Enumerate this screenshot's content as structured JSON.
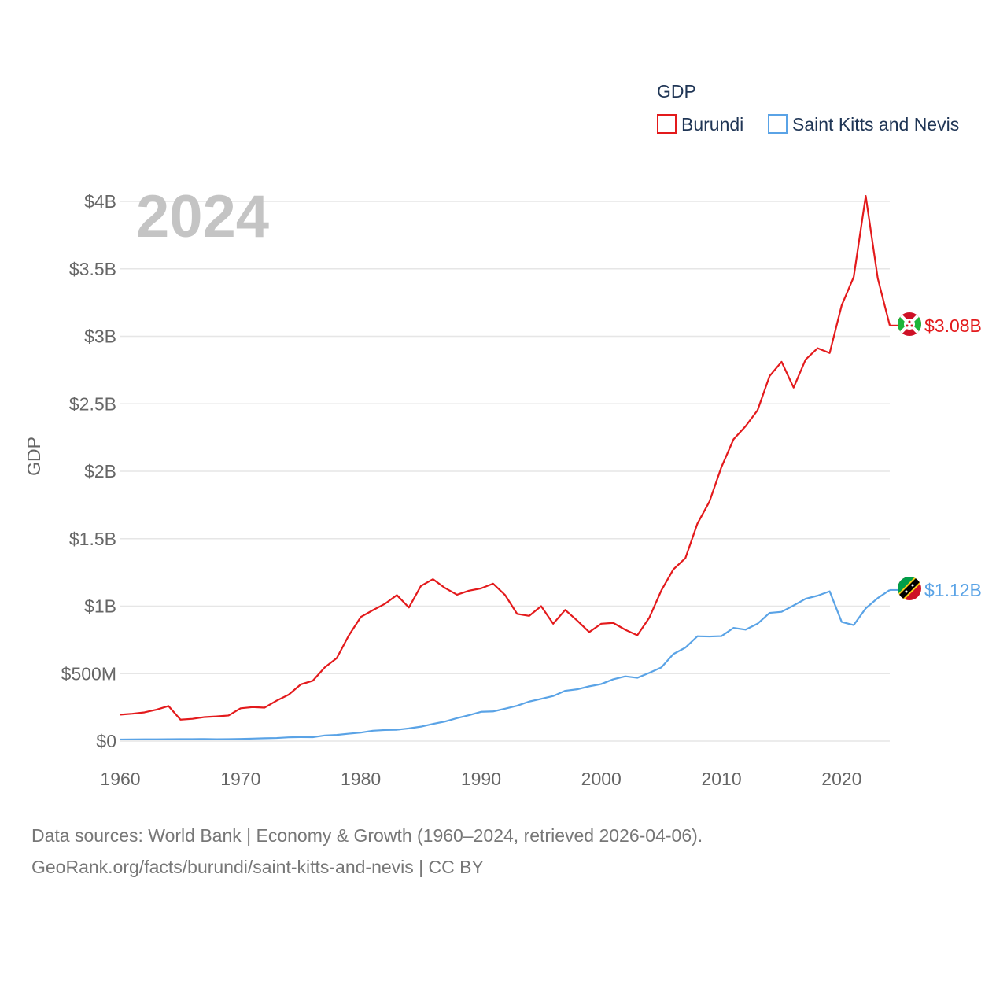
{
  "legend_title": "GDP",
  "year_label": "2024",
  "source_line1": "Data sources: World Bank | Economy & Growth (1960–2024, retrieved 2026-04-06).",
  "source_line2": "GeoRank.org/facts/burundi/saint-kitts-and-nevis | CC BY",
  "chart_data": {
    "type": "line",
    "title": "GDP",
    "xlabel": "",
    "ylabel": "GDP",
    "xlim": [
      1960,
      2024
    ],
    "ylim": [
      0,
      4000000000
    ],
    "x_ticks": [
      1960,
      1970,
      1980,
      1990,
      2000,
      2010,
      2020
    ],
    "x_tick_labels": [
      "1960",
      "1970",
      "1980",
      "1990",
      "2000",
      "2010",
      "2020"
    ],
    "y_ticks": [
      0,
      500000000,
      1000000000,
      1500000000,
      2000000000,
      2500000000,
      3000000000,
      3500000000,
      4000000000
    ],
    "y_tick_labels": [
      "$0",
      "$500M",
      "$1B",
      "$1.5B",
      "$2B",
      "$2.5B",
      "$3B",
      "$3.5B",
      "$4B"
    ],
    "grid": true,
    "legend_position": "top-right",
    "x": [
      1960,
      1961,
      1962,
      1963,
      1964,
      1965,
      1966,
      1967,
      1968,
      1969,
      1970,
      1971,
      1972,
      1973,
      1974,
      1975,
      1976,
      1977,
      1978,
      1979,
      1980,
      1981,
      1982,
      1983,
      1984,
      1985,
      1986,
      1987,
      1988,
      1989,
      1990,
      1991,
      1992,
      1993,
      1994,
      1995,
      1996,
      1997,
      1998,
      1999,
      2000,
      2001,
      2002,
      2003,
      2004,
      2005,
      2006,
      2007,
      2008,
      2009,
      2010,
      2011,
      2012,
      2013,
      2014,
      2015,
      2016,
      2017,
      2018,
      2019,
      2020,
      2021,
      2022,
      2023,
      2024
    ],
    "series": [
      {
        "name": "Burundi",
        "color": "#e31a1c",
        "end_label": "$3.08B",
        "values": [
          196000000,
          203000000,
          213000000,
          233000000,
          260000000,
          159000000,
          165000000,
          178000000,
          183000000,
          190000000,
          243000000,
          252000000,
          248000000,
          300000000,
          344000000,
          420000000,
          447000000,
          546000000,
          615000000,
          783000000,
          920000000,
          970000000,
          1017000000,
          1082000000,
          990000000,
          1150000000,
          1200000000,
          1135000000,
          1085000000,
          1115000000,
          1132000000,
          1167000000,
          1083000000,
          943000000,
          928000000,
          1000000000,
          870000000,
          972000000,
          893000000,
          808000000,
          870000000,
          876000000,
          825000000,
          784000000,
          915000000,
          1117000000,
          1273000000,
          1356000000,
          1612000000,
          1775000000,
          2032000000,
          2236000000,
          2333000000,
          2452000000,
          2705000000,
          2811000000,
          2620000000,
          2828000000,
          2912000000,
          2876000000,
          3230000000,
          3440000000,
          4040000000,
          3430000000,
          3080000000
        ]
      },
      {
        "name": "Saint Kitts and Nevis",
        "color": "#5aa3e6",
        "end_label": "$1.12B",
        "values": [
          12000000,
          12500000,
          13000000,
          13500000,
          14000000,
          14500000,
          15000000,
          15500000,
          14000000,
          15000000,
          16000000,
          18500000,
          21000000,
          23000000,
          28000000,
          30000000,
          29000000,
          42000000,
          46000000,
          55000000,
          63000000,
          77000000,
          82000000,
          84000000,
          94000000,
          107000000,
          127000000,
          145000000,
          170000000,
          192000000,
          217000000,
          220000000,
          240000000,
          262000000,
          293000000,
          313000000,
          334000000,
          373000000,
          384000000,
          406000000,
          423000000,
          458000000,
          480000000,
          469000000,
          506000000,
          546000000,
          645000000,
          693000000,
          777000000,
          775000000,
          778000000,
          839000000,
          826000000,
          870000000,
          950000000,
          958000000,
          1005000000,
          1055000000,
          1078000000,
          1110000000,
          883000000,
          860000000,
          984000000,
          1060000000,
          1120000000
        ]
      }
    ]
  }
}
